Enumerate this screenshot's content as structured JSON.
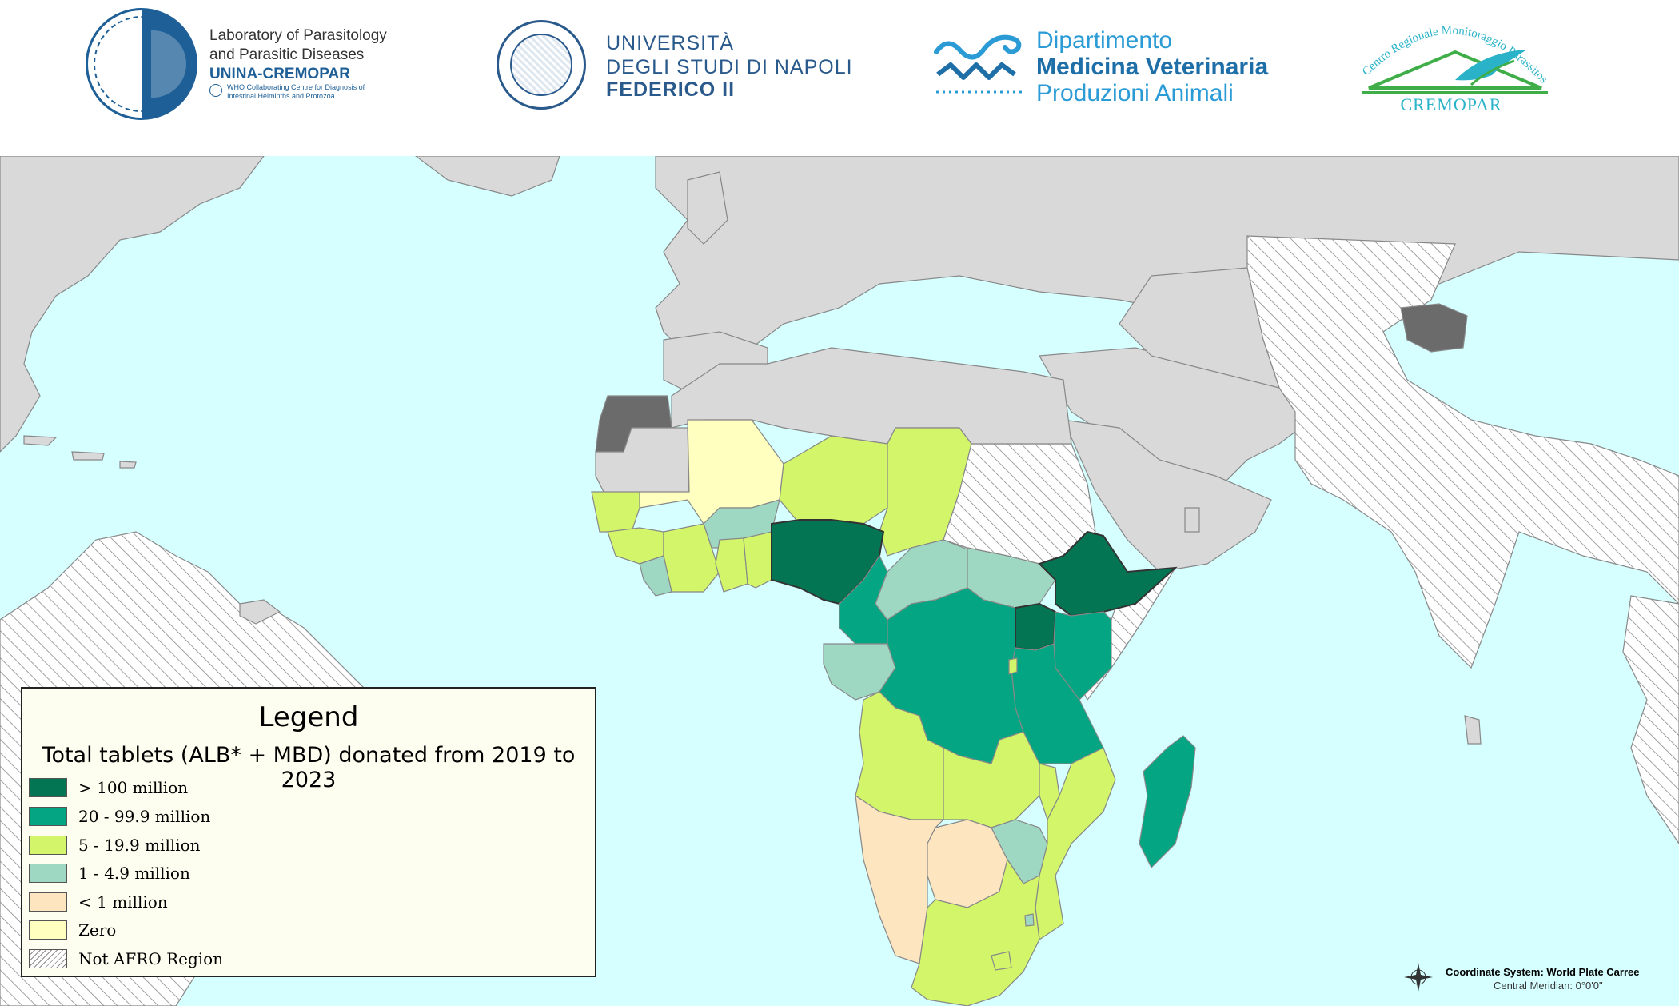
{
  "header": {
    "lab": {
      "line1": "Laboratory of Parasitology",
      "line2": "and Parasitic Diseases",
      "line3": "UNINA-CREMOPAR",
      "line4": "WHO Collaborating Centre for Diagnosis of Intestinal Helminths and Protozoa"
    },
    "university": {
      "line1": "UNIVERSITÀ",
      "line2": "DEGLI STUDI DI NAPOLI",
      "line3": "FEDERICO II"
    },
    "department": {
      "line1": "Dipartimento",
      "line2": "Medicina Veterinaria",
      "line3": "Produzioni Animali"
    },
    "cremopar": {
      "arc_text": "Centro Regionale Monitoraggio Parassitosi",
      "name": "CREMOPAR"
    }
  },
  "legend": {
    "title": "Legend",
    "subtitle": "Total tablets (ALB* + MBD) donated from 2019 to 2023",
    "items": [
      {
        "label": "> 100 million",
        "color": "#047552"
      },
      {
        "label": "20 - 99.9 million",
        "color": "#04a582"
      },
      {
        "label": "5 - 19.9 million",
        "color": "#d2f56a"
      },
      {
        "label": "1 - 4.9 million",
        "color": "#9fd8c2"
      },
      {
        "label": "< 1 million",
        "color": "#fde5c0"
      },
      {
        "label": "Zero",
        "color": "#ffffc0"
      },
      {
        "label": "Not AFRO Region",
        "pattern": "hatched"
      }
    ]
  },
  "map_colors": {
    "ocean": "#d6ffff",
    "land_other": "#d9d9d9",
    "disputed": "#6b6b6b",
    "border": "#888888"
  },
  "coordinate_system": {
    "title": "Coordinate System: World Plate Carree",
    "meridian": "Central Meridian: 0°0'0\""
  }
}
